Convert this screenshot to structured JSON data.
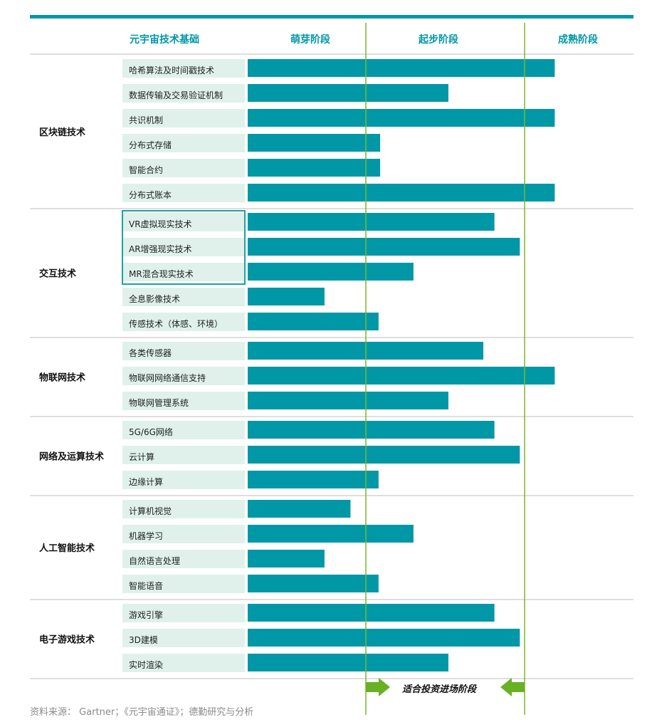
{
  "header": {
    "foundation_label": "元宇宙技术基础",
    "stages": [
      "萌芽阶段",
      "起步阶段",
      "成熟阶段"
    ]
  },
  "chart_data": {
    "type": "bar",
    "orientation": "horizontal",
    "value_meaning": "bar end position on the stage scale: 0 = start of 萌芽阶段, 1 = 萌芽/起步 boundary, 2 = 起步/成熟 boundary",
    "stage_labels": [
      "萌芽阶段",
      "起步阶段",
      "成熟阶段"
    ],
    "groups": [
      {
        "name": "区块链技术",
        "items": [
          {
            "label": "哈希算法及时间戳技术",
            "value": 2.19
          },
          {
            "label": "数据传输及交易验证机制",
            "value": 1.52
          },
          {
            "label": "共识机制",
            "value": 2.19
          },
          {
            "label": "分布式存储",
            "value": 1.09
          },
          {
            "label": "智能合约",
            "value": 1.09
          },
          {
            "label": "分布式账本",
            "value": 2.19
          }
        ]
      },
      {
        "name": "交互技术",
        "items": [
          {
            "label": "VR虚拟现实技术",
            "value": 1.81,
            "highlighted": true
          },
          {
            "label": "AR增强现实技术",
            "value": 1.97,
            "highlighted": true
          },
          {
            "label": "MR混合现实技术",
            "value": 1.3,
            "highlighted": true
          },
          {
            "label": "全息影像技术",
            "value": 0.65
          },
          {
            "label": "传感技术（体感、环境）",
            "value": 1.08
          }
        ]
      },
      {
        "name": "物联网技术",
        "items": [
          {
            "label": "各类传感器",
            "value": 1.74
          },
          {
            "label": "物联网网络通信支持",
            "value": 2.19
          },
          {
            "label": "物联网管理系统",
            "value": 1.52
          }
        ]
      },
      {
        "name": "网络及运算技术",
        "items": [
          {
            "label": "5G/6G网络",
            "value": 1.81
          },
          {
            "label": "云计算",
            "value": 1.97
          },
          {
            "label": "边缘计算",
            "value": 1.08
          }
        ]
      },
      {
        "name": "人工智能技术",
        "items": [
          {
            "label": "计算机视觉",
            "value": 0.87
          },
          {
            "label": "机器学习",
            "value": 1.3
          },
          {
            "label": "自然语言处理",
            "value": 0.65
          },
          {
            "label": "智能语音",
            "value": 1.08
          }
        ]
      },
      {
        "name": "电子游戏技术",
        "items": [
          {
            "label": "游戏引擎",
            "value": 1.81
          },
          {
            "label": "3D建模",
            "value": 1.97
          },
          {
            "label": "实时渲染",
            "value": 1.52
          }
        ]
      }
    ],
    "annotation": "适合投资进场阶段",
    "annotation_range": [
      1,
      2
    ],
    "colors": {
      "bar": "#0097a7",
      "label_bg": "#dff1ea",
      "header_text": "#0097a7",
      "divider": "#7ab929",
      "arrow": "#6ab023"
    }
  },
  "footnote": "资料来源： Gartner；《元宇宙通证》；德勤研究与分析"
}
